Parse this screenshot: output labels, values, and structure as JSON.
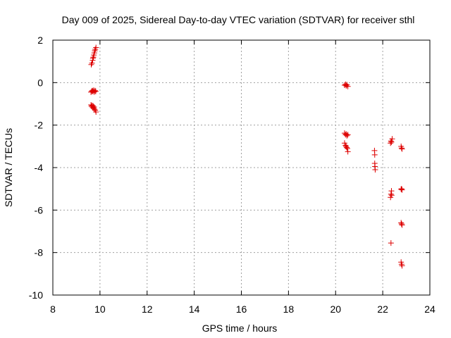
{
  "chart_data": {
    "type": "scatter",
    "title": "Day 009 of 2025, Sidereal Day-to-day VTEC variation (SDTVAR) for receiver sthl",
    "xlabel": "GPS time / hours",
    "ylabel": "SDTVAR / TECUs",
    "xlim": [
      8,
      24
    ],
    "ylim": [
      -10,
      2
    ],
    "xticks": [
      "8",
      "10",
      "12",
      "14",
      "16",
      "18",
      "20",
      "22",
      "24"
    ],
    "yticks": [
      "2",
      "0",
      "-2",
      "-4",
      "-6",
      "-8",
      "-10"
    ],
    "grid": true,
    "marker": "+",
    "color": "#dd0000",
    "series": [
      {
        "name": "SDTVAR",
        "points": [
          [
            9.63,
            0.85
          ],
          [
            9.66,
            0.92
          ],
          [
            9.69,
            1.05
          ],
          [
            9.7,
            1.15
          ],
          [
            9.72,
            1.2
          ],
          [
            9.74,
            1.3
          ],
          [
            9.76,
            1.4
          ],
          [
            9.78,
            1.5
          ],
          [
            9.8,
            1.57
          ],
          [
            9.83,
            1.65
          ],
          [
            9.62,
            -0.45
          ],
          [
            9.65,
            -0.4
          ],
          [
            9.68,
            -0.38
          ],
          [
            9.7,
            -0.42
          ],
          [
            9.73,
            -0.36
          ],
          [
            9.76,
            -0.44
          ],
          [
            9.79,
            -0.38
          ],
          [
            9.82,
            -0.41
          ],
          [
            9.62,
            -1.05
          ],
          [
            9.64,
            -1.12
          ],
          [
            9.67,
            -1.08
          ],
          [
            9.69,
            -1.18
          ],
          [
            9.71,
            -1.1
          ],
          [
            9.73,
            -1.2
          ],
          [
            9.75,
            -1.15
          ],
          [
            9.77,
            -1.25
          ],
          [
            9.8,
            -1.3
          ],
          [
            9.83,
            -1.38
          ],
          [
            20.38,
            -0.12
          ],
          [
            20.42,
            -0.08
          ],
          [
            20.45,
            -0.15
          ],
          [
            20.48,
            -0.1
          ],
          [
            20.52,
            -0.18
          ],
          [
            20.38,
            -2.38
          ],
          [
            20.42,
            -2.45
          ],
          [
            20.45,
            -2.42
          ],
          [
            20.48,
            -2.5
          ],
          [
            20.52,
            -2.45
          ],
          [
            20.38,
            -2.85
          ],
          [
            20.42,
            -2.95
          ],
          [
            20.44,
            -3.0
          ],
          [
            20.47,
            -3.05
          ],
          [
            20.5,
            -3.1
          ],
          [
            20.52,
            -3.25
          ],
          [
            21.65,
            -3.2
          ],
          [
            21.66,
            -3.4
          ],
          [
            21.66,
            -3.8
          ],
          [
            21.67,
            -3.95
          ],
          [
            21.68,
            -4.1
          ],
          [
            22.33,
            -2.85
          ],
          [
            22.35,
            -2.75
          ],
          [
            22.37,
            -2.8
          ],
          [
            22.4,
            -2.65
          ],
          [
            22.33,
            -5.4
          ],
          [
            22.35,
            -5.25
          ],
          [
            22.37,
            -5.1
          ],
          [
            22.38,
            -5.3
          ],
          [
            22.35,
            -7.55
          ],
          [
            22.78,
            -3.0
          ],
          [
            22.8,
            -3.08
          ],
          [
            22.82,
            -3.12
          ],
          [
            22.78,
            -5.02
          ],
          [
            22.8,
            -5.0
          ],
          [
            22.82,
            -5.05
          ],
          [
            22.78,
            -6.6
          ],
          [
            22.8,
            -6.65
          ],
          [
            22.82,
            -6.7
          ],
          [
            22.78,
            -8.45
          ],
          [
            22.8,
            -8.55
          ],
          [
            22.82,
            -8.62
          ]
        ]
      }
    ]
  }
}
